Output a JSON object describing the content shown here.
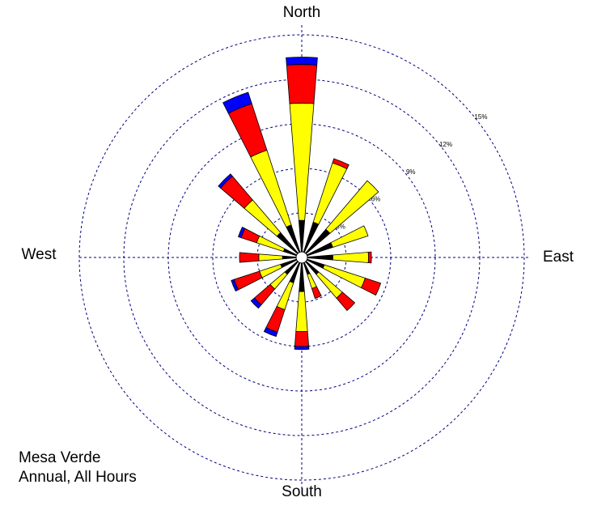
{
  "chart_data": {
    "type": "windrose",
    "direction_labels": [
      "North",
      "East",
      "South",
      "West"
    ],
    "notes": [
      "Mesa Verde",
      "Annual, All Hours"
    ],
    "rlim": [
      0,
      15
    ],
    "rticks": [
      {
        "value": 3,
        "label": "3%"
      },
      {
        "value": 6,
        "label": "6%"
      },
      {
        "value": 9,
        "label": "9%"
      },
      {
        "value": 12,
        "label": "12%"
      },
      {
        "value": 15,
        "label": "15%"
      }
    ],
    "grid": true,
    "grid_color": "#000080",
    "series": [
      {
        "color": "#000000",
        "values": [
          2.5,
          2.5,
          2.5,
          2.2,
          2.1,
          1.6,
          1.5,
          1.2,
          2.3,
          1.8,
          1.5,
          1.5,
          1.3,
          1.3,
          2.2,
          2.3
        ]
      },
      {
        "color": "#ffff00",
        "values": [
          7.9,
          4.2,
          4.3,
          2.5,
          2.4,
          2.9,
          2.1,
          1.0,
          2.7,
          1.9,
          1.3,
          1.5,
          1.6,
          1.9,
          2.9,
          5.3
        ]
      },
      {
        "color": "#ff0000",
        "values": [
          2.6,
          0.3,
          0,
          0,
          0.2,
          1.1,
          1.1,
          0.7,
          1.0,
          1.6,
          1.4,
          1.8,
          1.3,
          1.1,
          2.1,
          3.3
        ]
      },
      {
        "color": "#0000ff",
        "values": [
          0.5,
          0,
          0,
          0,
          0,
          0,
          0,
          0,
          0.2,
          0.3,
          0.3,
          0.2,
          0,
          0.2,
          0.2,
          0.8
        ]
      }
    ]
  }
}
